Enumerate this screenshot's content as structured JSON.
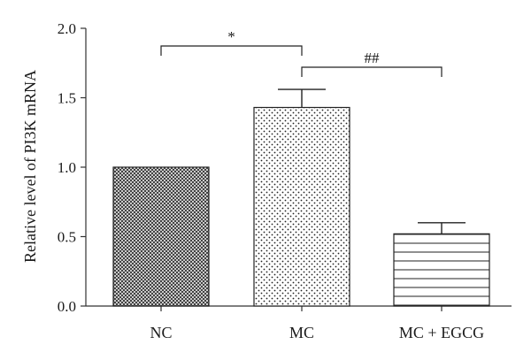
{
  "chart_data": {
    "type": "bar",
    "title": "",
    "xlabel": "",
    "ylabel": "Relative level of PI3K mRNA",
    "ylim": [
      0,
      2.0
    ],
    "yticks": [
      0.0,
      0.5,
      1.0,
      1.5,
      2.0
    ],
    "ytick_labels": [
      "0.0",
      "0.5",
      "1.0",
      "1.5",
      "2.0"
    ],
    "grid": false,
    "categories": [
      "NC",
      "MC",
      "MC + EGCG"
    ],
    "values": [
      1.0,
      1.43,
      0.52
    ],
    "errors": [
      0,
      0.13,
      0.08
    ],
    "bar_patterns": [
      "crosshatch",
      "dots",
      "horizontal-lines"
    ],
    "significance": [
      {
        "from": "NC",
        "to": "MC",
        "label": "*"
      },
      {
        "from": "MC",
        "to": "MC + EGCG",
        "label": "##"
      }
    ]
  }
}
